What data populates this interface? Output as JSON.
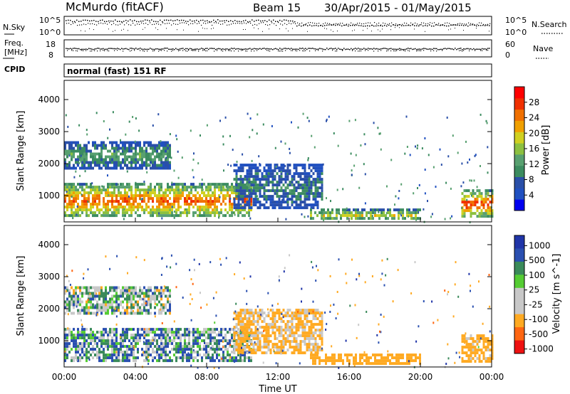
{
  "header": {
    "title": "McMurdo (fitACF)",
    "beam": "Beam 15",
    "date_range": "30/Apr/2015 - 01/May/2015"
  },
  "noise_panel": {
    "left_label": "N.Sky",
    "right_label": "N.Search",
    "left_ticks": [
      "10^5",
      "10^0"
    ],
    "right_ticks": [
      "10^5",
      "10^0"
    ]
  },
  "freq_panel": {
    "left_label_1": "Freq.",
    "left_label_2": "[MHz]",
    "right_label": "Nave",
    "left_ticks": [
      "18",
      "8"
    ],
    "right_ticks": [
      "60",
      "0"
    ]
  },
  "cpid": {
    "label": "CPID",
    "value": "normal (fast) 151 RF"
  },
  "colors": {
    "power": [
      "#0000f0",
      "#2050c0",
      "#2a4fa8",
      "#3c8c60",
      "#58a070",
      "#8cc040",
      "#d0d020",
      "#f0a000",
      "#f07000",
      "#f03000",
      "#ff0000"
    ],
    "velocity": [
      "#ee1111",
      "#ff6611",
      "#ffaa22",
      "#c8c8c8",
      "#c8c8c8",
      "#55cc33",
      "#3a8a5a",
      "#2a4fb0",
      "#2035a8"
    ]
  },
  "chart_data": [
    {
      "type": "heatmap",
      "name": "power",
      "ylabel": "Slant Range [km]",
      "y_ticks": [
        "1000",
        "2000",
        "3000",
        "4000"
      ],
      "ylim": [
        180,
        4600
      ],
      "colorbar_label": "Power [dB]",
      "colorbar_ticks": [
        "4",
        "8",
        "12",
        "16",
        "20",
        "24",
        "28"
      ],
      "colorbar_range": [
        0,
        32
      ],
      "x_ticks": [
        "00:00",
        "04:00",
        "08:00",
        "12:00",
        "16:00",
        "20:00",
        "00:00"
      ],
      "xlim_hours": [
        0,
        24
      ],
      "echo_regions": [
        {
          "t0": 0.0,
          "t1": 10.5,
          "r0": 350,
          "r1": 1400,
          "level": 26
        },
        {
          "t0": 0.0,
          "t1": 6.0,
          "r0": 1900,
          "r1": 2700,
          "level": 12
        },
        {
          "t0": 9.5,
          "t1": 14.5,
          "r0": 600,
          "r1": 2000,
          "level": 9
        },
        {
          "t0": 13.8,
          "t1": 20.0,
          "r0": 250,
          "r1": 600,
          "level": 18
        },
        {
          "t0": 22.3,
          "t1": 24.0,
          "r0": 350,
          "r1": 1200,
          "level": 28
        }
      ]
    },
    {
      "type": "heatmap",
      "name": "velocity",
      "ylabel": "Slant Range [km]",
      "y_ticks": [
        "1000",
        "2000",
        "3000",
        "4000"
      ],
      "ylim": [
        180,
        4600
      ],
      "colorbar_label": "Velocity [m s^-1]",
      "colorbar_ticks": [
        "1000",
        "500",
        "100",
        "25",
        "-25",
        "-100",
        "-500",
        "-1000"
      ],
      "x_ticks": [
        "00:00",
        "04:00",
        "08:00",
        "12:00",
        "16:00",
        "20:00",
        "00:00"
      ],
      "xlim_hours": [
        0,
        24
      ],
      "xlabel": "Time UT",
      "echo_regions": [
        {
          "t0": 0.0,
          "t1": 10.5,
          "r0": 350,
          "r1": 1400,
          "level": 60
        },
        {
          "t0": 0.0,
          "t1": 6.0,
          "r0": 1900,
          "r1": 2700,
          "level": 0
        },
        {
          "t0": 9.5,
          "t1": 14.5,
          "r0": 600,
          "r1": 2000,
          "level": -150
        },
        {
          "t0": 13.8,
          "t1": 20.0,
          "r0": 250,
          "r1": 600,
          "level": -300
        },
        {
          "t0": 22.3,
          "t1": 24.0,
          "r0": 350,
          "r1": 1200,
          "level": -200
        }
      ]
    }
  ]
}
